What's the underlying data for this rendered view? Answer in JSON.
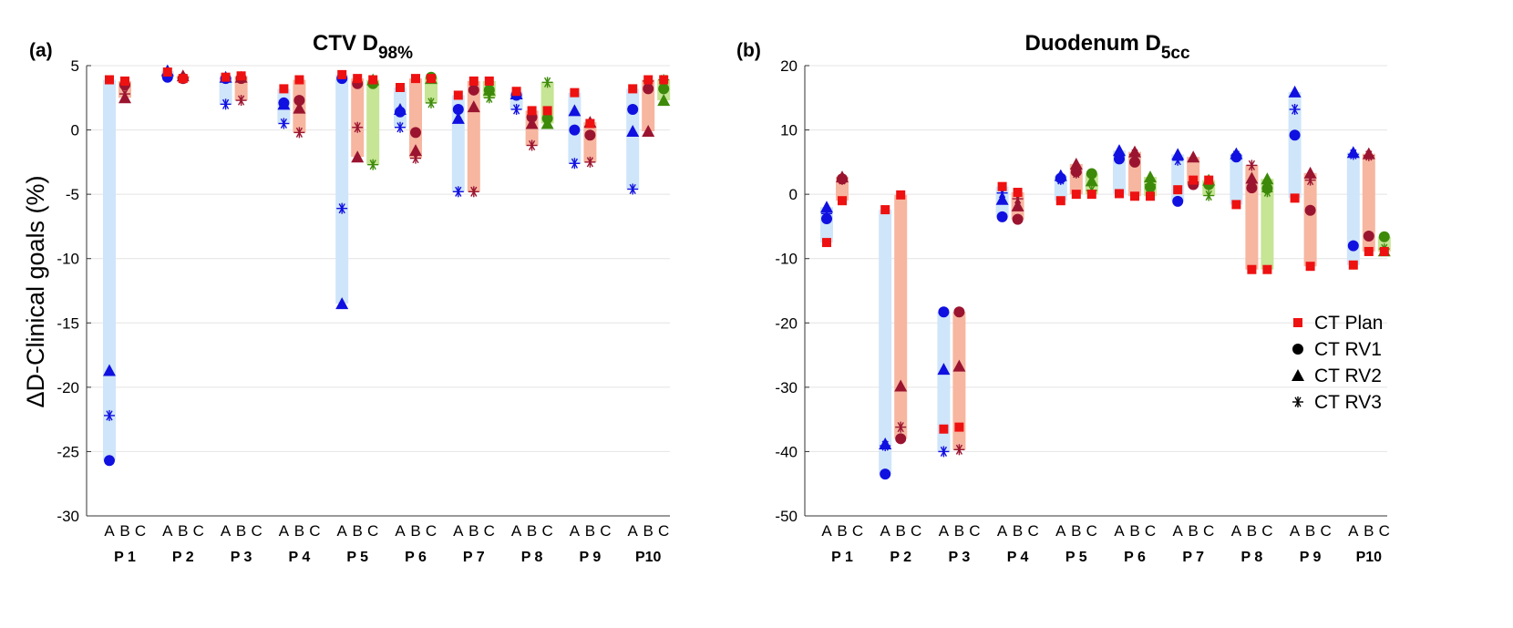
{
  "ylabel": "ΔD-Clinical goals (%)",
  "legend": {
    "position": "right",
    "entries": [
      {
        "name": "CT Plan",
        "marker": "square"
      },
      {
        "name": "CT RV1",
        "marker": "circle"
      },
      {
        "name": "CT RV2",
        "marker": "triangle"
      },
      {
        "name": "CT RV3",
        "marker": "asterisk"
      }
    ]
  },
  "colors": {
    "plan": "#ee1111",
    "A_marker": "#1010e0",
    "B_marker": "#9a1430",
    "C_marker": "#3d8a0a",
    "A_band": "#cfe5fa",
    "B_band": "#f7b6a0",
    "C_band": "#c6e595"
  },
  "chart_data": [
    {
      "type": "scatter",
      "panel_label": "(a)",
      "title": "CTV D",
      "title_sub": "98%",
      "ylim": [
        -30,
        5
      ],
      "yticks": [
        5,
        0,
        -5,
        -10,
        -15,
        -20,
        -25,
        -30
      ],
      "grid": true,
      "categories": [
        "P 1",
        "P 2",
        "P 3",
        "P 4",
        "P 5",
        "P 6",
        "P 7",
        "P 8",
        "P 9",
        "P10"
      ],
      "groups": [
        "A",
        "B",
        "C"
      ],
      "data": {
        "P 1": {
          "A": {
            "plan": 3.9,
            "rv1": -25.7,
            "rv2": -18.7,
            "rv3": -22.2
          },
          "B": {
            "plan": 3.8,
            "rv1": 3.5,
            "rv2": 2.5,
            "rv3": 2.8
          }
        },
        "P 2": {
          "A": {
            "plan": 4.5,
            "rv1": 4.1,
            "rv2": 4.6,
            "rv3": 4.3
          },
          "B": {
            "plan": 4.0,
            "rv1": 4.0,
            "rv2": 4.2,
            "rv3": 4.0
          }
        },
        "P 3": {
          "A": {
            "plan": 4.1,
            "rv1": 4.0,
            "rv2": 4.1,
            "rv3": 2.0
          },
          "B": {
            "plan": 4.2,
            "rv1": 4.0,
            "rv2": 4.1,
            "rv3": 2.3
          }
        },
        "P 4": {
          "A": {
            "plan": 3.2,
            "rv1": 2.1,
            "rv2": 2.0,
            "rv3": 0.5
          },
          "B": {
            "plan": 3.9,
            "rv1": 2.3,
            "rv2": 1.7,
            "rv3": -0.2
          }
        },
        "P 5": {
          "A": {
            "plan": 4.3,
            "rv1": 4.0,
            "rv2": -13.5,
            "rv3": -6.1
          },
          "B": {
            "plan": 4.0,
            "rv1": 3.6,
            "rv2": -2.1,
            "rv3": 0.2
          },
          "C": {
            "plan": 3.9,
            "rv1": 3.6,
            "rv2": 3.9,
            "rv3": -2.7
          }
        },
        "P 6": {
          "A": {
            "plan": 3.3,
            "rv1": 1.4,
            "rv2": 1.6,
            "rv3": 0.2
          },
          "B": {
            "plan": 4.0,
            "rv1": -0.2,
            "rv2": -1.6,
            "rv3": -2.2
          },
          "C": {
            "plan": 4.0,
            "rv1": 4.1,
            "rv2": 4.0,
            "rv3": 2.1
          }
        },
        "P 7": {
          "A": {
            "plan": 2.7,
            "rv1": 1.6,
            "rv2": 0.9,
            "rv3": -4.8
          },
          "B": {
            "plan": 3.8,
            "rv1": 3.1,
            "rv2": 1.8,
            "rv3": -4.8
          },
          "C": {
            "plan": 3.8,
            "rv1": 3.1,
            "rv2": 3.1,
            "rv3": 2.5
          }
        },
        "P 8": {
          "A": {
            "plan": 3.0,
            "rv1": 2.7,
            "rv2": 2.8,
            "rv3": 1.6
          },
          "B": {
            "plan": 1.5,
            "rv1": 1.0,
            "rv2": 0.5,
            "rv3": -1.2
          },
          "C": {
            "plan": 1.5,
            "rv1": 0.9,
            "rv2": 0.5,
            "rv3": 3.7
          }
        },
        "P 9": {
          "A": {
            "plan": 2.9,
            "rv1": 0.0,
            "rv2": 1.5,
            "rv3": -2.6
          },
          "B": {
            "plan": 0.5,
            "rv1": -0.4,
            "rv2": 0.6,
            "rv3": -2.5
          }
        },
        "P10": {
          "A": {
            "plan": 3.2,
            "rv1": 1.6,
            "rv2": -0.1,
            "rv3": -4.6
          },
          "B": {
            "plan": 3.9,
            "rv1": 3.2,
            "rv2": -0.1,
            "rv3": 3.8
          },
          "C": {
            "plan": 3.9,
            "rv1": 3.2,
            "rv2": 2.3,
            "rv3": 3.9
          }
        }
      }
    },
    {
      "type": "scatter",
      "panel_label": "(b)",
      "title": "Duodenum D",
      "title_sub": "5cc",
      "ylim": [
        -50,
        20
      ],
      "yticks": [
        20,
        10,
        0,
        -10,
        -20,
        -30,
        -40,
        -50
      ],
      "grid": true,
      "categories": [
        "P 1",
        "P 2",
        "P 3",
        "P 4",
        "P 5",
        "P 6",
        "P 7",
        "P 8",
        "P 9",
        "P10"
      ],
      "groups": [
        "A",
        "B",
        "C"
      ],
      "data": {
        "P 1": {
          "A": {
            "plan": -7.5,
            "rv1": -3.8,
            "rv2": -2.0,
            "rv3": -3.0
          },
          "B": {
            "plan": -1.0,
            "rv1": 2.4,
            "rv2": 2.7,
            "rv3": 2.3
          }
        },
        "P 2": {
          "A": {
            "plan": -2.4,
            "rv1": -43.5,
            "rv2": -38.8,
            "rv3": -39.1
          },
          "B": {
            "plan": -0.1,
            "rv1": -38.0,
            "rv2": -29.8,
            "rv3": -36.2
          }
        },
        "P 3": {
          "A": {
            "plan": -36.5,
            "rv1": -18.3,
            "rv2": -27.2,
            "rv3": -40.0
          },
          "B": {
            "plan": -36.2,
            "rv1": -18.3,
            "rv2": -26.7,
            "rv3": -39.7
          }
        },
        "P 4": {
          "A": {
            "plan": 1.2,
            "rv1": -3.5,
            "rv2": -0.8,
            "rv3": 0.2
          },
          "B": {
            "plan": 0.3,
            "rv1": -3.9,
            "rv2": -1.8,
            "rv3": -0.7
          }
        },
        "P 5": {
          "A": {
            "plan": -1.0,
            "rv1": 2.5,
            "rv2": 2.9,
            "rv3": 2.3
          },
          "B": {
            "plan": 0.0,
            "rv1": 3.5,
            "rv2": 4.7,
            "rv3": 3.3
          },
          "C": {
            "plan": 0.0,
            "rv1": 3.2,
            "rv2": 2.1,
            "rv3": 0.6
          }
        },
        "P 6": {
          "A": {
            "plan": 0.1,
            "rv1": 5.5,
            "rv2": 6.8,
            "rv3": 6.0
          },
          "B": {
            "plan": -0.3,
            "rv1": 5.0,
            "rv2": 6.6,
            "rv3": 6.2
          },
          "C": {
            "plan": -0.3,
            "rv1": 1.1,
            "rv2": 2.7,
            "rv3": 1.5
          }
        },
        "P 7": {
          "A": {
            "plan": 0.7,
            "rv1": -1.1,
            "rv2": 6.2,
            "rv3": 5.3
          },
          "B": {
            "plan": 2.2,
            "rv1": 1.5,
            "rv2": 5.8,
            "rv3": 1.9
          },
          "C": {
            "plan": 2.2,
            "rv1": 1.5,
            "rv2": 2.2,
            "rv3": -0.2
          }
        },
        "P 8": {
          "A": {
            "plan": -1.6,
            "rv1": 5.8,
            "rv2": 6.3,
            "rv3": 6.0
          },
          "B": {
            "plan": -11.7,
            "rv1": 1.0,
            "rv2": 2.5,
            "rv3": 4.5
          },
          "C": {
            "plan": -11.7,
            "rv1": 0.9,
            "rv2": 2.4,
            "rv3": 0.4
          }
        },
        "P 9": {
          "A": {
            "plan": -0.6,
            "rv1": 9.2,
            "rv2": 15.9,
            "rv3": 13.2
          },
          "B": {
            "plan": -11.2,
            "rv1": -2.5,
            "rv2": 3.3,
            "rv3": 2.2
          }
        },
        "P10": {
          "A": {
            "plan": -11.0,
            "rv1": -8.0,
            "rv2": 6.5,
            "rv3": 6.2
          },
          "B": {
            "plan": -8.9,
            "rv1": -6.5,
            "rv2": 6.3,
            "rv3": 6.0
          },
          "C": {
            "plan": -8.9,
            "rv1": -6.6,
            "rv2": -8.8,
            "rv3": -8.5
          }
        }
      }
    }
  ]
}
